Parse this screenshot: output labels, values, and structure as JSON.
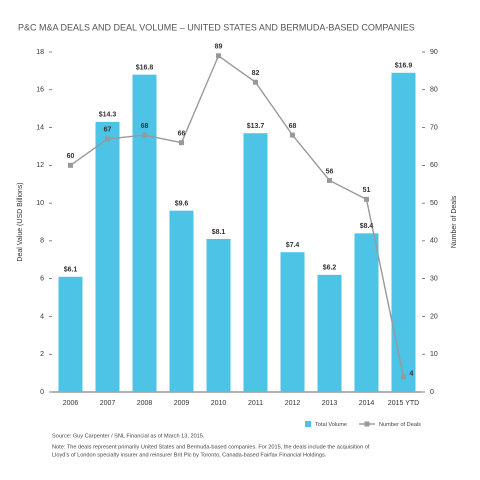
{
  "chart_data": {
    "type": "bar-line",
    "title": "P&C M&A DEALS AND DEAL VOLUME – UNITED STATES AND BERMUDA-BASED COMPANIES",
    "y_label": "Deal Value (USD Billions)",
    "y2_label": "Number of Deals",
    "categories": [
      "2006",
      "2007",
      "2008",
      "2009",
      "2010",
      "2011",
      "2012",
      "2013",
      "2014",
      "2015 YTD"
    ],
    "series": [
      {
        "name": "Total Volume",
        "color": "#4dc3e6",
        "type": "bar",
        "values": [
          6.1,
          14.3,
          16.8,
          9.6,
          8.1,
          13.7,
          7.4,
          6.2,
          8.4,
          16.9
        ],
        "value_labels": [
          "$6.1",
          "$14.3",
          "$16.8",
          "$9.6",
          "$8.1",
          "$13.7",
          "$7.4",
          "$6.2",
          "$8.4",
          "$16.9"
        ]
      },
      {
        "name": "Number of Deals",
        "color": "#999999",
        "type": "line",
        "axis": "y2",
        "values": [
          60,
          67,
          68,
          66,
          89,
          82,
          68,
          56,
          51,
          4
        ]
      }
    ],
    "ylim": [
      0,
      18
    ],
    "yticks": [
      0,
      2,
      4,
      6,
      8,
      10,
      12,
      14,
      16,
      18
    ],
    "y2lim": [
      0,
      90
    ],
    "y2ticks": [
      0,
      10,
      20,
      30,
      40,
      50,
      60,
      70,
      80,
      90
    ],
    "source": "Source: Guy Carpenter / SNL Financial as of March 13, 2015.",
    "notes": [
      "Note: The deals represent primarily United States and Bermuda-based companies. For 2015, the deals include the acquisition of",
      "Lloyd’s of London specialty insurer and reinsurer Brit Plc by Toronto, Canada-based Fairfax Financial Holdings."
    ]
  }
}
